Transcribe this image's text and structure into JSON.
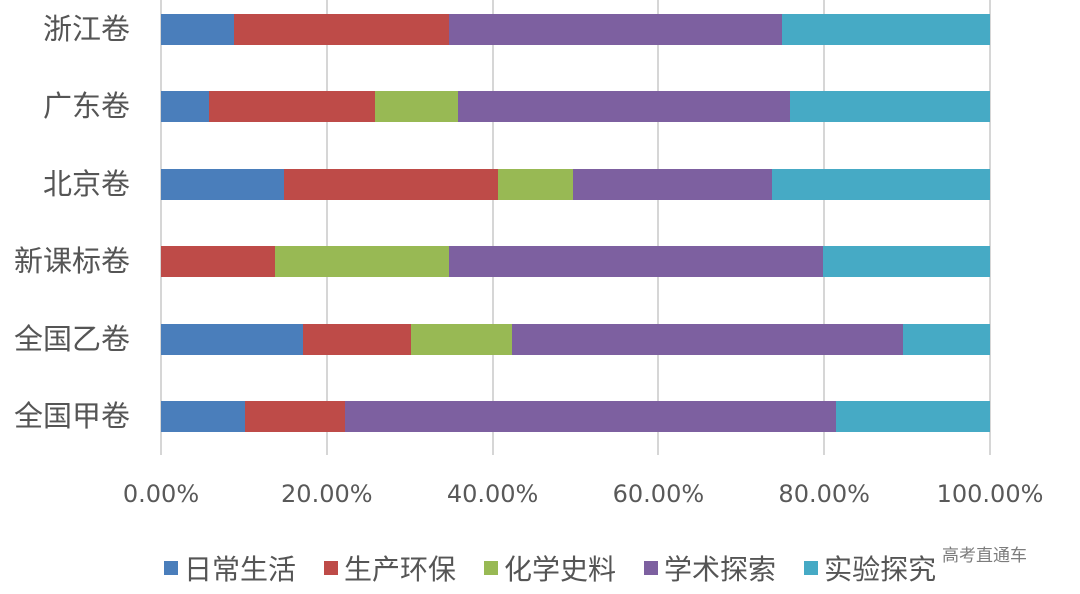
{
  "chart_data": {
    "type": "bar",
    "orientation": "horizontal",
    "stacked": "percent",
    "title": "",
    "xlabel": "",
    "ylabel": "",
    "xlim": [
      0,
      100
    ],
    "grid": true,
    "legend_position": "bottom",
    "categories": [
      "浙江卷",
      "广东卷",
      "北京卷",
      "新课标卷",
      "全国乙卷",
      "全国甲卷"
    ],
    "series": [
      {
        "name": "日常生活",
        "color": "#4a7ebb",
        "values": [
          8.8,
          5.8,
          14.8,
          0.0,
          17.1,
          10.1
        ]
      },
      {
        "name": "生产环保",
        "color": "#be4b48",
        "values": [
          26.0,
          20.0,
          25.9,
          13.8,
          13.0,
          12.1
        ]
      },
      {
        "name": "化学史料",
        "color": "#98b954",
        "values": [
          0.0,
          10.0,
          9.0,
          21.0,
          12.2,
          0.0
        ]
      },
      {
        "name": "学术探索",
        "color": "#7d60a0",
        "values": [
          40.1,
          40.1,
          24.0,
          45.1,
          47.2,
          59.2
        ]
      },
      {
        "name": "实验探究",
        "color": "#46aac5",
        "values": [
          25.1,
          24.1,
          26.3,
          20.1,
          10.5,
          18.6
        ]
      }
    ],
    "x_ticks": [
      "0.00%",
      "20.00%",
      "40.00%",
      "60.00%",
      "80.00%",
      "100.00%"
    ]
  },
  "watermark": "高考直通车"
}
